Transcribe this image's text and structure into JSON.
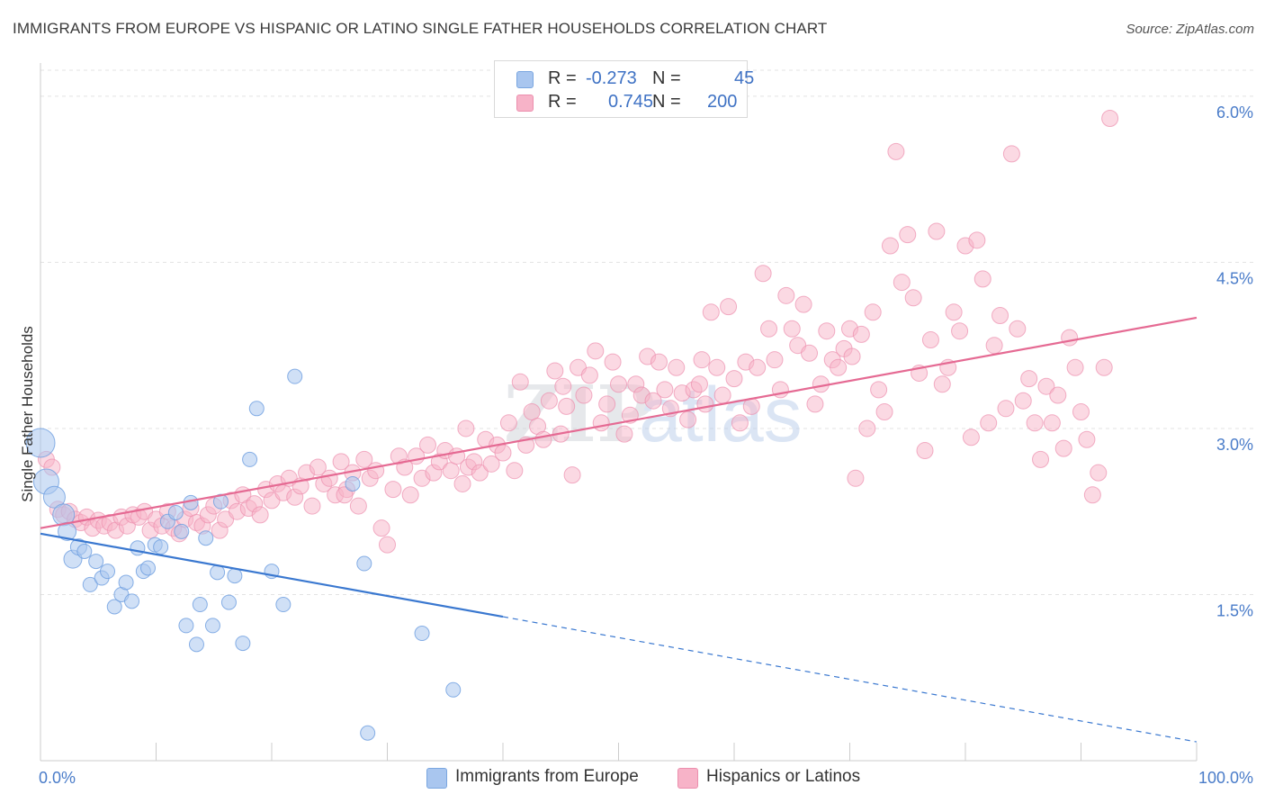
{
  "title": "IMMIGRANTS FROM EUROPE VS HISPANIC OR LATINO SINGLE FATHER HOUSEHOLDS CORRELATION CHART",
  "source": "Source: ZipAtlas.com",
  "watermark": {
    "part1": "ZIP",
    "part2": "atlas"
  },
  "legend": {
    "rows": [
      {
        "r_label": "R =",
        "r_value": "-0.273",
        "n_label": "N =",
        "n_value": "45",
        "color": "#a9c6ef"
      },
      {
        "r_label": "R =",
        "r_value": "0.745",
        "n_label": "N =",
        "n_value": "200",
        "color": "#f7b3c8"
      }
    ]
  },
  "bottom_legend": [
    {
      "label": "Immigrants from Europe",
      "color": "#a9c6ef"
    },
    {
      "label": "Hispanics or Latinos",
      "color": "#f7b3c8"
    }
  ],
  "chart_data": {
    "type": "scatter",
    "ylabel": "Single Father Households",
    "xlabel": "",
    "x_tick_labels": [
      "0.0%",
      "100.0%"
    ],
    "y_tick_labels": [
      "1.5%",
      "3.0%",
      "4.5%",
      "6.0%"
    ],
    "y_ticks": [
      1.5,
      3.0,
      4.5,
      6.0
    ],
    "xlim": [
      0,
      100
    ],
    "ylim": [
      0,
      6.3
    ],
    "grid": true,
    "colors": {
      "blue": "#6d9ee0",
      "blue_fill": "#a9c6ef",
      "blue_line": "#3a78d0",
      "pink": "#ec8fae",
      "pink_fill": "#f7b3c8",
      "pink_line": "#e56a93"
    },
    "series": [
      {
        "name": "Immigrants from Europe",
        "trend": {
          "x0": 0,
          "y0": 2.05,
          "x1": 40,
          "y1": 1.3,
          "dash_x1": 100,
          "dash_y1": 0.17
        },
        "points": [
          [
            0,
            2.87,
            16
          ],
          [
            0.5,
            2.52,
            14
          ],
          [
            1.2,
            2.38,
            12
          ],
          [
            2,
            2.22,
            12
          ],
          [
            2.3,
            2.07,
            10
          ],
          [
            2.8,
            1.82,
            10
          ],
          [
            3.3,
            1.93,
            9
          ],
          [
            3.8,
            1.89,
            8
          ],
          [
            4.3,
            1.59,
            8
          ],
          [
            4.8,
            1.8,
            8
          ],
          [
            5.3,
            1.65,
            8
          ],
          [
            5.8,
            1.71,
            8
          ],
          [
            6.4,
            1.39,
            8
          ],
          [
            7.0,
            1.5,
            8
          ],
          [
            7.4,
            1.61,
            8
          ],
          [
            7.9,
            1.44,
            8
          ],
          [
            8.4,
            1.92,
            8
          ],
          [
            8.9,
            1.71,
            8
          ],
          [
            9.3,
            1.74,
            8
          ],
          [
            9.9,
            1.95,
            8
          ],
          [
            10.4,
            1.93,
            8
          ],
          [
            11.0,
            2.16,
            8
          ],
          [
            11.7,
            2.24,
            8
          ],
          [
            12.2,
            2.07,
            8
          ],
          [
            12.6,
            1.22,
            8
          ],
          [
            13.0,
            2.33,
            8
          ],
          [
            13.5,
            1.05,
            8
          ],
          [
            13.8,
            1.41,
            8
          ],
          [
            14.3,
            2.01,
            8
          ],
          [
            14.9,
            1.22,
            8
          ],
          [
            15.3,
            1.7,
            8
          ],
          [
            15.6,
            2.34,
            8
          ],
          [
            16.3,
            1.43,
            8
          ],
          [
            16.8,
            1.67,
            8
          ],
          [
            17.5,
            1.06,
            8
          ],
          [
            18.1,
            2.72,
            8
          ],
          [
            18.7,
            3.18,
            8
          ],
          [
            20.0,
            1.71,
            8
          ],
          [
            21.0,
            1.41,
            8
          ],
          [
            22.0,
            3.47,
            8
          ],
          [
            27.0,
            2.5,
            8
          ],
          [
            28.0,
            1.78,
            8
          ],
          [
            28.3,
            0.25,
            8
          ],
          [
            33.0,
            1.15,
            8
          ],
          [
            35.7,
            0.64,
            8
          ]
        ]
      },
      {
        "name": "Hispanics or Latinos",
        "trend": {
          "x0": 0,
          "y0": 2.1,
          "x1": 100,
          "y1": 4.0
        },
        "points": [
          [
            0.5,
            2.72
          ],
          [
            1.0,
            2.65
          ],
          [
            1.5,
            2.27
          ],
          [
            2.0,
            2.22
          ],
          [
            2.5,
            2.25
          ],
          [
            3.0,
            2.18
          ],
          [
            3.5,
            2.15
          ],
          [
            4.0,
            2.2
          ],
          [
            4.5,
            2.1
          ],
          [
            5.0,
            2.17
          ],
          [
            5.5,
            2.12
          ],
          [
            6.0,
            2.15
          ],
          [
            6.5,
            2.08
          ],
          [
            7.0,
            2.2
          ],
          [
            7.5,
            2.12
          ],
          [
            8.0,
            2.22
          ],
          [
            8.5,
            2.2
          ],
          [
            9.0,
            2.25
          ],
          [
            9.5,
            2.08
          ],
          [
            10.0,
            2.18
          ],
          [
            10.5,
            2.12
          ],
          [
            11.0,
            2.25
          ],
          [
            11.5,
            2.1
          ],
          [
            12.0,
            2.05
          ],
          [
            12.5,
            2.18
          ],
          [
            13.0,
            2.28
          ],
          [
            13.5,
            2.15
          ],
          [
            14.0,
            2.12
          ],
          [
            14.5,
            2.22
          ],
          [
            15.0,
            2.3
          ],
          [
            15.5,
            2.08
          ],
          [
            16.0,
            2.18
          ],
          [
            16.5,
            2.35
          ],
          [
            17.0,
            2.25
          ],
          [
            17.5,
            2.4
          ],
          [
            18.0,
            2.28
          ],
          [
            18.5,
            2.32
          ],
          [
            19.0,
            2.22
          ],
          [
            19.5,
            2.45
          ],
          [
            20.0,
            2.35
          ],
          [
            20.5,
            2.5
          ],
          [
            21.0,
            2.42
          ],
          [
            21.5,
            2.55
          ],
          [
            22.0,
            2.38
          ],
          [
            22.5,
            2.48
          ],
          [
            23.0,
            2.6
          ],
          [
            23.5,
            2.3
          ],
          [
            24.0,
            2.65
          ],
          [
            24.5,
            2.5
          ],
          [
            25.0,
            2.55
          ],
          [
            25.5,
            2.4
          ],
          [
            26.0,
            2.7
          ],
          [
            26.5,
            2.45
          ],
          [
            27.0,
            2.6
          ],
          [
            27.5,
            2.3
          ],
          [
            28.0,
            2.72
          ],
          [
            28.5,
            2.55
          ],
          [
            29.0,
            2.62
          ],
          [
            29.5,
            2.1
          ],
          [
            30.0,
            1.95
          ],
          [
            30.5,
            2.45
          ],
          [
            31.0,
            2.75
          ],
          [
            31.5,
            2.65
          ],
          [
            32.0,
            2.4
          ],
          [
            32.5,
            2.75
          ],
          [
            33.0,
            2.55
          ],
          [
            33.5,
            2.85
          ],
          [
            34.0,
            2.6
          ],
          [
            34.5,
            2.7
          ],
          [
            35.0,
            2.8
          ],
          [
            35.5,
            2.62
          ],
          [
            36.0,
            2.75
          ],
          [
            36.5,
            2.5
          ],
          [
            37.0,
            2.65
          ],
          [
            37.5,
            2.7
          ],
          [
            38.0,
            2.6
          ],
          [
            38.5,
            2.9
          ],
          [
            39.0,
            2.68
          ],
          [
            39.5,
            2.85
          ],
          [
            40.0,
            2.78
          ],
          [
            40.5,
            3.05
          ],
          [
            41.0,
            2.62
          ],
          [
            41.5,
            3.42
          ],
          [
            42.0,
            2.85
          ],
          [
            42.5,
            3.15
          ],
          [
            43.0,
            3.02
          ],
          [
            43.5,
            2.9
          ],
          [
            44.0,
            3.25
          ],
          [
            44.5,
            3.52
          ],
          [
            45.0,
            2.95
          ],
          [
            45.5,
            3.2
          ],
          [
            46.0,
            2.58
          ],
          [
            46.5,
            3.55
          ],
          [
            47.0,
            3.3
          ],
          [
            47.5,
            3.48
          ],
          [
            48.0,
            3.7
          ],
          [
            48.5,
            3.05
          ],
          [
            49.0,
            3.22
          ],
          [
            49.5,
            3.6
          ],
          [
            50.0,
            3.4
          ],
          [
            50.5,
            2.95
          ],
          [
            51.0,
            3.12
          ],
          [
            51.5,
            3.4
          ],
          [
            52.0,
            3.3
          ],
          [
            52.5,
            3.65
          ],
          [
            53.0,
            3.25
          ],
          [
            53.5,
            3.6
          ],
          [
            54.0,
            3.35
          ],
          [
            54.5,
            3.18
          ],
          [
            55.0,
            3.55
          ],
          [
            55.5,
            3.32
          ],
          [
            56.0,
            3.08
          ],
          [
            56.5,
            3.35
          ],
          [
            57.0,
            3.4
          ],
          [
            57.5,
            3.22
          ],
          [
            58.0,
            4.05
          ],
          [
            58.5,
            3.55
          ],
          [
            59.0,
            3.3
          ],
          [
            59.5,
            4.1
          ],
          [
            60.0,
            3.45
          ],
          [
            60.5,
            3.05
          ],
          [
            61.0,
            3.6
          ],
          [
            61.5,
            3.2
          ],
          [
            62.0,
            3.55
          ],
          [
            62.5,
            4.4
          ],
          [
            63.0,
            3.9
          ],
          [
            63.5,
            3.62
          ],
          [
            64.0,
            3.35
          ],
          [
            64.5,
            4.2
          ],
          [
            65.0,
            3.9
          ],
          [
            65.5,
            3.75
          ],
          [
            66.0,
            4.12
          ],
          [
            66.5,
            3.68
          ],
          [
            67.0,
            3.22
          ],
          [
            67.5,
            3.4
          ],
          [
            68.0,
            3.88
          ],
          [
            68.5,
            3.62
          ],
          [
            69.0,
            3.55
          ],
          [
            69.5,
            3.72
          ],
          [
            70.0,
            3.9
          ],
          [
            70.5,
            2.55
          ],
          [
            71.0,
            3.85
          ],
          [
            71.5,
            3.0
          ],
          [
            72.0,
            4.05
          ],
          [
            72.5,
            3.35
          ],
          [
            73.0,
            3.15
          ],
          [
            73.5,
            4.65
          ],
          [
            74.0,
            5.5
          ],
          [
            74.5,
            4.32
          ],
          [
            75.0,
            4.75
          ],
          [
            75.5,
            4.18
          ],
          [
            76.0,
            3.5
          ],
          [
            76.5,
            2.8
          ],
          [
            77.0,
            3.8
          ],
          [
            77.5,
            4.78
          ],
          [
            78.0,
            3.4
          ],
          [
            78.5,
            3.55
          ],
          [
            79.0,
            4.05
          ],
          [
            79.5,
            3.88
          ],
          [
            80.0,
            4.65
          ],
          [
            80.5,
            2.92
          ],
          [
            81.0,
            4.7
          ],
          [
            81.5,
            4.35
          ],
          [
            82.0,
            3.05
          ],
          [
            82.5,
            3.75
          ],
          [
            83.0,
            4.02
          ],
          [
            83.5,
            3.18
          ],
          [
            84.0,
            5.48
          ],
          [
            84.5,
            3.9
          ],
          [
            85.0,
            3.25
          ],
          [
            85.5,
            3.45
          ],
          [
            86.0,
            3.05
          ],
          [
            86.5,
            2.72
          ],
          [
            87.0,
            3.38
          ],
          [
            87.5,
            3.05
          ],
          [
            88.0,
            3.3
          ],
          [
            88.5,
            2.82
          ],
          [
            89.0,
            3.82
          ],
          [
            89.5,
            3.55
          ],
          [
            90.0,
            3.15
          ],
          [
            90.5,
            2.9
          ],
          [
            91.0,
            2.4
          ],
          [
            91.5,
            2.6
          ],
          [
            92.0,
            3.55
          ],
          [
            92.5,
            5.8
          ],
          [
            70.2,
            3.65
          ],
          [
            57.2,
            3.62
          ],
          [
            45.2,
            3.38
          ],
          [
            36.8,
            3.0
          ],
          [
            26.3,
            2.4
          ]
        ]
      }
    ]
  }
}
